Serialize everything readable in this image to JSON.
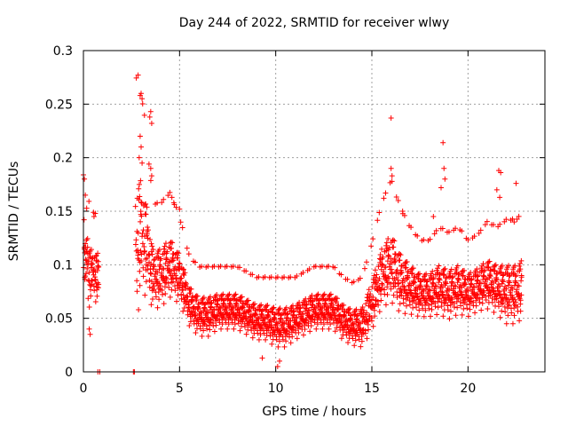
{
  "chart_data": {
    "type": "scatter",
    "title": "Day 244 of 2022, SRMTID for receiver wlwy",
    "xlabel": "GPS time / hours",
    "ylabel": "SRMTID / TECUs",
    "xlim": [
      0,
      24
    ],
    "ylim": [
      0,
      0.3
    ],
    "x_ticks": [
      "0",
      "5",
      "10",
      "15",
      "20"
    ],
    "y_ticks": [
      "0",
      "0.05",
      "0.1",
      "0.15",
      "0.2",
      "0.25",
      "0.3"
    ],
    "grid": true,
    "marker": "+",
    "series_color": "#ff0000",
    "envelope": {
      "hours": [
        0.0,
        0.1,
        0.3,
        0.5,
        0.7,
        2.8,
        3.0,
        3.3,
        3.6,
        4.0,
        4.5,
        5.0,
        5.5,
        6.0,
        6.5,
        7.0,
        7.5,
        8.0,
        8.5,
        9.0,
        9.5,
        10.0,
        10.5,
        11.0,
        11.5,
        12.0,
        12.5,
        13.0,
        13.5,
        14.0,
        14.5,
        15.0,
        15.5,
        16.0,
        16.5,
        17.0,
        17.5,
        18.0,
        18.5,
        19.0,
        19.5,
        20.0,
        20.5,
        21.0,
        21.5,
        22.0,
        22.5,
        22.8
      ],
      "median": [
        0.12,
        0.1,
        0.085,
        0.09,
        0.085,
        0.11,
        0.12,
        0.11,
        0.085,
        0.085,
        0.095,
        0.085,
        0.06,
        0.05,
        0.05,
        0.055,
        0.055,
        0.055,
        0.05,
        0.045,
        0.045,
        0.04,
        0.04,
        0.045,
        0.05,
        0.055,
        0.055,
        0.055,
        0.045,
        0.04,
        0.04,
        0.06,
        0.085,
        0.095,
        0.08,
        0.075,
        0.07,
        0.07,
        0.075,
        0.07,
        0.075,
        0.07,
        0.075,
        0.08,
        0.075,
        0.07,
        0.07,
        0.075
      ],
      "spread": [
        0.04,
        0.03,
        0.03,
        0.025,
        0.025,
        0.07,
        0.06,
        0.045,
        0.03,
        0.03,
        0.03,
        0.025,
        0.02,
        0.02,
        0.02,
        0.018,
        0.018,
        0.018,
        0.018,
        0.018,
        0.018,
        0.02,
        0.02,
        0.018,
        0.018,
        0.018,
        0.018,
        0.018,
        0.018,
        0.018,
        0.02,
        0.025,
        0.03,
        0.035,
        0.03,
        0.025,
        0.022,
        0.022,
        0.025,
        0.025,
        0.025,
        0.022,
        0.022,
        0.025,
        0.025,
        0.03,
        0.03,
        0.03
      ]
    },
    "coverage_gaps_hours": [
      [
        0.8,
        2.7
      ]
    ],
    "zero_points": [
      {
        "x": 0.75,
        "y": 0
      },
      {
        "x": 0.85,
        "y": 0
      },
      {
        "x": 2.6,
        "y": 0
      },
      {
        "x": 2.65,
        "y": 0
      }
    ],
    "outliers": [
      {
        "x": 3.0,
        "y": 0.26
      },
      {
        "x": 2.95,
        "y": 0.258
      },
      {
        "x": 3.05,
        "y": 0.255
      },
      {
        "x": 3.5,
        "y": 0.243
      },
      {
        "x": 3.45,
        "y": 0.238
      },
      {
        "x": 3.55,
        "y": 0.232
      },
      {
        "x": 2.95,
        "y": 0.22
      },
      {
        "x": 3.0,
        "y": 0.21
      },
      {
        "x": 2.9,
        "y": 0.2
      },
      {
        "x": 3.05,
        "y": 0.195
      },
      {
        "x": 3.5,
        "y": 0.19
      },
      {
        "x": 3.55,
        "y": 0.183
      },
      {
        "x": 0.0,
        "y": 0.184
      },
      {
        "x": 0.05,
        "y": 0.18
      },
      {
        "x": 0.1,
        "y": 0.165
      },
      {
        "x": 4.6,
        "y": 0.163
      },
      {
        "x": 4.7,
        "y": 0.158
      },
      {
        "x": 5.0,
        "y": 0.152
      },
      {
        "x": 16.0,
        "y": 0.237
      },
      {
        "x": 16.0,
        "y": 0.19
      },
      {
        "x": 16.05,
        "y": 0.183
      },
      {
        "x": 18.7,
        "y": 0.214
      },
      {
        "x": 18.75,
        "y": 0.19
      },
      {
        "x": 18.8,
        "y": 0.18
      },
      {
        "x": 18.6,
        "y": 0.172
      },
      {
        "x": 21.6,
        "y": 0.188
      },
      {
        "x": 21.7,
        "y": 0.186
      },
      {
        "x": 21.5,
        "y": 0.17
      },
      {
        "x": 21.65,
        "y": 0.163
      },
      {
        "x": 22.5,
        "y": 0.176
      },
      {
        "x": 22.4,
        "y": 0.14
      },
      {
        "x": 16.6,
        "y": 0.15
      },
      {
        "x": 18.2,
        "y": 0.145
      },
      {
        "x": 0.55,
        "y": 0.145
      },
      {
        "x": 0.3,
        "y": 0.04
      },
      {
        "x": 0.35,
        "y": 0.035
      },
      {
        "x": 10.1,
        "y": 0.005
      },
      {
        "x": 10.2,
        "y": 0.01
      },
      {
        "x": 9.3,
        "y": 0.013
      }
    ]
  }
}
